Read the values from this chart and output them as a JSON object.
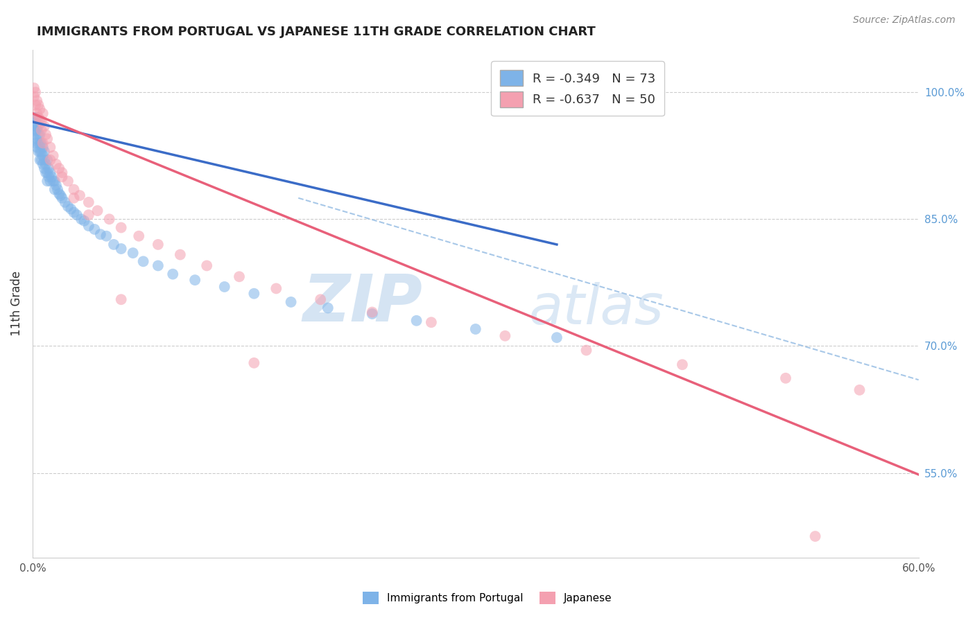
{
  "title": "IMMIGRANTS FROM PORTUGAL VS JAPANESE 11TH GRADE CORRELATION CHART",
  "source": "Source: ZipAtlas.com",
  "ylabel": "11th Grade",
  "ylabel_right_ticks": [
    "100.0%",
    "85.0%",
    "70.0%",
    "55.0%"
  ],
  "ylabel_right_values": [
    1.0,
    0.85,
    0.7,
    0.55
  ],
  "xmin": 0.0,
  "xmax": 0.6,
  "ymin": 0.45,
  "ymax": 1.05,
  "legend_r1": "R = -0.349",
  "legend_n1": "N = 73",
  "legend_r2": "R = -0.637",
  "legend_n2": "N = 50",
  "blue_color": "#7EB3E8",
  "pink_color": "#F4A0B0",
  "blue_line_color": "#3B6CC7",
  "pink_line_color": "#E8607A",
  "dashed_line_color": "#A8C8E8",
  "watermark_zip": "ZIP",
  "watermark_atlas": "atlas",
  "blue_scatter_x": [
    0.001,
    0.001,
    0.001,
    0.002,
    0.002,
    0.002,
    0.002,
    0.003,
    0.003,
    0.003,
    0.003,
    0.003,
    0.004,
    0.004,
    0.004,
    0.004,
    0.005,
    0.005,
    0.005,
    0.005,
    0.006,
    0.006,
    0.006,
    0.007,
    0.007,
    0.007,
    0.008,
    0.008,
    0.008,
    0.009,
    0.009,
    0.01,
    0.01,
    0.01,
    0.011,
    0.011,
    0.012,
    0.012,
    0.013,
    0.014,
    0.015,
    0.015,
    0.016,
    0.017,
    0.018,
    0.019,
    0.02,
    0.022,
    0.024,
    0.026,
    0.028,
    0.03,
    0.033,
    0.035,
    0.038,
    0.042,
    0.046,
    0.05,
    0.055,
    0.06,
    0.068,
    0.075,
    0.085,
    0.095,
    0.11,
    0.13,
    0.15,
    0.175,
    0.2,
    0.23,
    0.26,
    0.3,
    0.355
  ],
  "blue_scatter_y": [
    0.97,
    0.96,
    0.95,
    0.97,
    0.955,
    0.94,
    0.96,
    0.955,
    0.945,
    0.935,
    0.96,
    0.97,
    0.95,
    0.94,
    0.93,
    0.96,
    0.94,
    0.93,
    0.92,
    0.95,
    0.93,
    0.92,
    0.94,
    0.925,
    0.915,
    0.935,
    0.92,
    0.91,
    0.93,
    0.915,
    0.905,
    0.92,
    0.905,
    0.895,
    0.91,
    0.9,
    0.905,
    0.895,
    0.9,
    0.895,
    0.895,
    0.885,
    0.89,
    0.885,
    0.88,
    0.878,
    0.875,
    0.87,
    0.865,
    0.862,
    0.858,
    0.855,
    0.85,
    0.848,
    0.842,
    0.838,
    0.832,
    0.83,
    0.82,
    0.815,
    0.81,
    0.8,
    0.795,
    0.785,
    0.778,
    0.77,
    0.762,
    0.752,
    0.745,
    0.738,
    0.73,
    0.72,
    0.71
  ],
  "pink_scatter_x": [
    0.001,
    0.001,
    0.002,
    0.002,
    0.003,
    0.003,
    0.004,
    0.004,
    0.005,
    0.005,
    0.006,
    0.006,
    0.007,
    0.008,
    0.009,
    0.01,
    0.012,
    0.014,
    0.016,
    0.018,
    0.02,
    0.024,
    0.028,
    0.032,
    0.038,
    0.044,
    0.052,
    0.06,
    0.072,
    0.085,
    0.1,
    0.118,
    0.14,
    0.165,
    0.195,
    0.23,
    0.27,
    0.32,
    0.375,
    0.44,
    0.51,
    0.56,
    0.007,
    0.012,
    0.02,
    0.028,
    0.038,
    0.06,
    0.15,
    0.53
  ],
  "pink_scatter_y": [
    1.005,
    0.995,
    1.0,
    0.985,
    0.99,
    0.975,
    0.985,
    0.97,
    0.98,
    0.968,
    0.965,
    0.955,
    0.975,
    0.96,
    0.95,
    0.945,
    0.935,
    0.925,
    0.915,
    0.91,
    0.905,
    0.895,
    0.885,
    0.878,
    0.87,
    0.86,
    0.85,
    0.84,
    0.83,
    0.82,
    0.808,
    0.795,
    0.782,
    0.768,
    0.755,
    0.74,
    0.728,
    0.712,
    0.695,
    0.678,
    0.662,
    0.648,
    0.94,
    0.92,
    0.9,
    0.875,
    0.855,
    0.755,
    0.68,
    0.475
  ],
  "blue_trendline_x": [
    0.0,
    0.355
  ],
  "blue_trendline_y": [
    0.965,
    0.82
  ],
  "pink_trendline_x": [
    0.0,
    0.6
  ],
  "pink_trendline_y": [
    0.975,
    0.548
  ],
  "dashed_trendline_x": [
    0.18,
    0.6
  ],
  "dashed_trendline_y": [
    0.875,
    0.66
  ]
}
